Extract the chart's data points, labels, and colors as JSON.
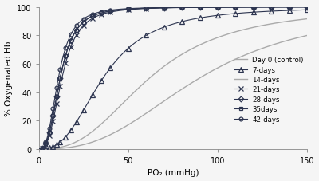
{
  "title": "",
  "xlabel": "PO₂ (mmHg)",
  "ylabel": "% Oxygenated Hb",
  "xlim": [
    0,
    150
  ],
  "ylim": [
    0,
    100
  ],
  "xticks": [
    0,
    50,
    100,
    150
  ],
  "yticks": [
    0,
    20,
    40,
    60,
    80,
    100
  ],
  "background_color": "#f5f5f5",
  "day0_color": "#aaaaaa",
  "day14_color": "#aaaaaa",
  "other_color": "#2d3550",
  "hill_params": {
    "day0": {
      "p50": 90,
      "n": 2.7
    },
    "day7": {
      "p50": 36,
      "n": 2.7
    },
    "day14": {
      "p50": 62,
      "n": 2.7
    },
    "day21": {
      "p50": 13,
      "n": 2.9
    },
    "day28": {
      "p50": 12,
      "n": 2.9
    },
    "day35": {
      "p50": 12,
      "n": 2.9
    },
    "day42": {
      "p50": 11,
      "n": 2.9
    }
  },
  "marker_x_values": [
    2,
    4,
    6,
    8,
    10,
    12,
    15,
    18,
    21,
    25,
    30,
    35,
    40,
    50,
    60,
    70,
    80,
    90,
    100,
    110,
    120,
    130,
    140,
    150
  ]
}
